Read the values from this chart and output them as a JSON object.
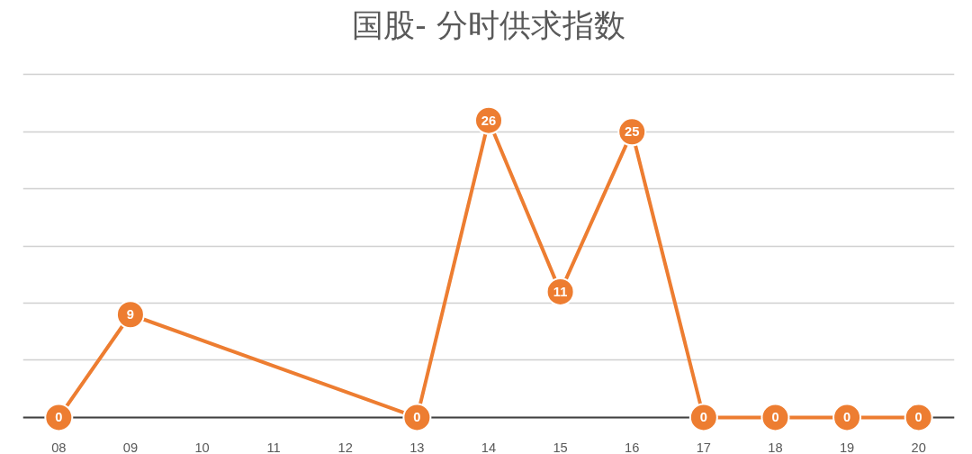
{
  "chart_data": {
    "type": "line",
    "title": "国股- 分时供求指数",
    "categories": [
      "08",
      "09",
      "10",
      "11",
      "12",
      "13",
      "14",
      "15",
      "16",
      "17",
      "18",
      "19",
      "20"
    ],
    "series": [
      {
        "color": "#ed7d31",
        "values": [
          0,
          9,
          null,
          null,
          null,
          0,
          26,
          11,
          25,
          0,
          0,
          0,
          0
        ]
      }
    ],
    "ylim": [
      0,
      30
    ],
    "yticks": [
      {
        "value": 0,
        "label": null
      },
      {
        "value": 5,
        "label": null
      },
      {
        "value": 10,
        "label": null
      },
      {
        "value": 15,
        "label": null
      },
      {
        "value": 20,
        "label": null
      },
      {
        "value": 25,
        "label": null
      },
      {
        "value": 30,
        "label": null
      }
    ],
    "tick_labels": "x",
    "grid": "y",
    "marker": "circle",
    "line_style": "solid",
    "data_labels": true
  }
}
